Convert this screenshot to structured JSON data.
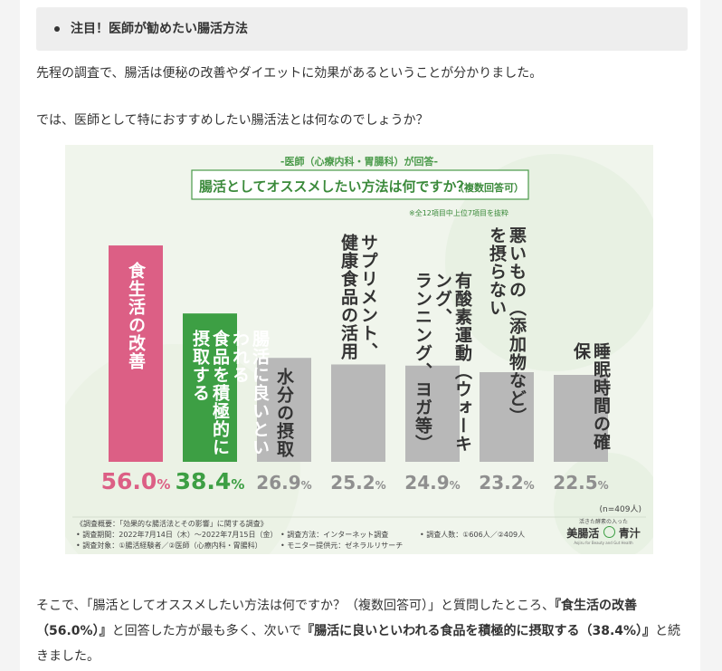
{
  "article": {
    "note_heading": "注目！医師が勧めたい腸活方法",
    "para1": "先程の調査で、腸活は便秘の改善やダイエットに効果があるということが分かりました。",
    "para2": "では、医師として特におすすめしたい腸活法とは何なのでしょうか？",
    "para3_a": "そこで、「腸活としてオススメしたい方法は何ですか？（複数回答可）」と質問したところ、",
    "para3_b": "『食生活の改善（56.0%）』",
    "para3_c": "と回答した方が最も多く、次いで",
    "para3_d": "『腸活に良いといわれる食品を積極的に摂取する（38.4%）』",
    "para3_e": "と続きました。"
  },
  "infographic": {
    "subtitle": "-医師（心療内科・胃腸科）が回答-",
    "question": "腸活としてオススメしたい方法は何ですか？",
    "question_note": "（複数回答可）",
    "scope_note": "※全12項目中上位7項目を抜粋",
    "n_note": "(n=409人)",
    "footer": {
      "overview": "《調査概要：「効果的な腸活法とその影響」に関する調査》",
      "period": "• 調査期間：2022年7月14日（木）～2022年7月15日（金）",
      "subjects": "• 調査対象：①腸活経験者／②医師（心療内科・胃腸科）",
      "method": "• 調査方法：インターネット調査",
      "monitor": "• モニター提供元：ゼネラルリサーチ",
      "people": "• 調査人数：①606人／②409人"
    },
    "logo": {
      "tagline": "活きた酵素の入った",
      "name_a": "美腸活",
      "name_b": "青汁",
      "sub": "Aojiru for Beauty and Gut Health"
    },
    "colors": {
      "top": "#dc5f85",
      "second": "#3d9f44",
      "rest": "#b8b8b8"
    }
  },
  "chart_data": {
    "type": "bar",
    "title": "腸活としてオススメしたい方法は何ですか？（複数回答可）",
    "categories": [
      "食生活の改善",
      "腸活に良いといわれる食品を積極的に摂取する",
      "水分の摂取",
      "サプリメント、健康食品の活用",
      "有酸素運動（ウォーキング、ランニング、ヨガ等）",
      "悪いもの（添加物など）を摂らない",
      "睡眠時間の確保"
    ],
    "display_labels": [
      [
        "食生活の改善"
      ],
      [
        "腸活に良いといわれる",
        "食品を積極的に摂取する"
      ],
      [
        "水分の摂取"
      ],
      [
        "サプリメント、",
        "健康食品の活用"
      ],
      [
        "有酸素運動（ウォーキング、",
        "ランニング、ヨガ等）"
      ],
      [
        "悪いもの（添加物など）",
        "を摂らない"
      ],
      [
        "睡眠時間の確保"
      ]
    ],
    "values": [
      56.0,
      38.4,
      26.9,
      25.2,
      24.9,
      23.2,
      22.5
    ],
    "value_labels": [
      "56.0%",
      "38.4%",
      "26.9%",
      "25.2%",
      "24.9%",
      "23.2%",
      "22.5%"
    ],
    "unit": "%",
    "ylim": [
      0,
      60
    ],
    "grid": false,
    "n": "409人"
  }
}
